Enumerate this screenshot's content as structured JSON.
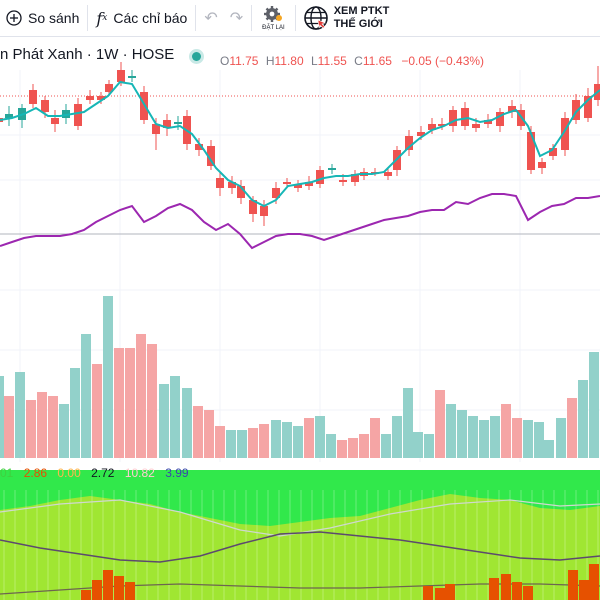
{
  "toolbar": {
    "compare_label": "So sánh",
    "indicators_label": "Các chỉ báo",
    "reset_label": "ĐẶT LẠI",
    "world_ta_line1": "XEM PTKT",
    "world_ta_line2": "THẾ GIỚI"
  },
  "legend": {
    "symbol_name": "n Phát Xanh",
    "interval": "1W",
    "exchange": "HOSE",
    "open_label": "O",
    "open": "11.75",
    "high_label": "H",
    "high": "11.80",
    "low_label": "L",
    "low": "11.55",
    "close_label": "C",
    "close": "11.65",
    "change": "−0.05 (−0.43%)"
  },
  "indicator_values": [
    {
      "text": "01",
      "color": "#3fd13f"
    },
    {
      "text": "2.86",
      "color": "#e65100"
    },
    {
      "text": "0.00",
      "color": "#ffb74d"
    },
    {
      "text": "2.72",
      "color": "#131722"
    },
    {
      "text": "10.82",
      "color": "#ffcdd2"
    },
    {
      "text": "3.99",
      "color": "#3949ab"
    }
  ],
  "colors": {
    "up": "#26a69a",
    "down": "#ef5350",
    "vol_up": "#92d1ca",
    "vol_down": "#f5a5a5",
    "ma_line": "#16b6b6",
    "rsi_line": "#9c27b0",
    "indicator_green_bg": "#31e84b",
    "indicator_yellow_green": "#a0e632"
  },
  "icons": [
    "plus-circle-icon",
    "fx-icon",
    "undo-icon",
    "redo-icon",
    "gear-reset-icon",
    "globe-icon"
  ]
}
